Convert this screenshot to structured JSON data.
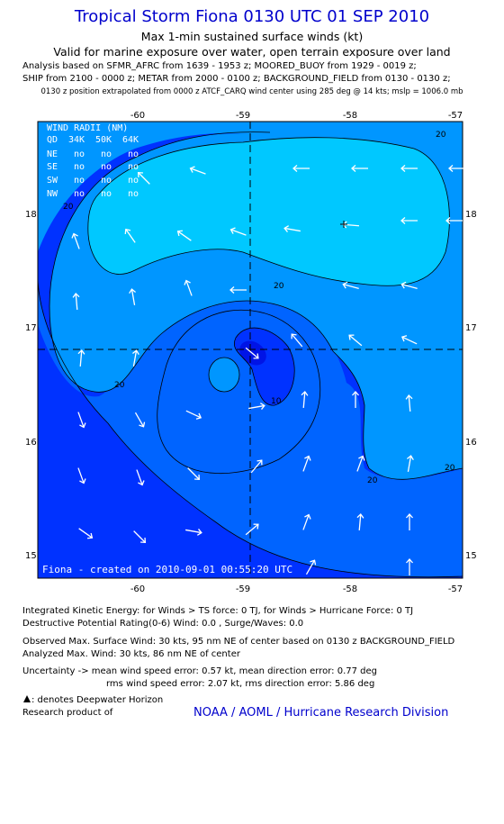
{
  "header": {
    "title": "Tropical Storm Fiona 0130 UTC 01 SEP 2010",
    "subtitle1": "Max 1-min sustained surface winds (kt)",
    "subtitle2": "Valid for marine exposure over water, open terrain exposure over land",
    "analysis1": "Analysis based on SFMR_AFRC from 1639 - 1953 z; MOORED_BUOY from 1929 - 0019 z;",
    "analysis2": "SHIP from 2100 - 0000 z; METAR from 2000 - 0100 z; BACKGROUND_FIELD from 0130 - 0130 z;",
    "position_note": "0130 z position extrapolated from 0000 z ATCF_CARQ wind center using 285 deg @ 14 kts; mslp = 1006.0 mb"
  },
  "map": {
    "lon_ticks": [
      "-60",
      "-59",
      "-58",
      "-57"
    ],
    "lat_ticks": [
      "18",
      "17",
      "16",
      "15"
    ],
    "contour_labels": [
      "20",
      "20",
      "20",
      "20",
      "20",
      "10"
    ],
    "wind_radii": {
      "title": "WIND RADII (NM)",
      "header": [
        "QD",
        "34K",
        "50K",
        "64K"
      ],
      "rows": [
        [
          "NE",
          "no",
          "no",
          "no"
        ],
        [
          "SE",
          "no",
          "no",
          "no"
        ],
        [
          "SW",
          "no",
          "no",
          "no"
        ],
        [
          "NW",
          "no",
          "no",
          "no"
        ]
      ]
    },
    "credit": "Fiona - created on 2010-09-01 00:55:20 UTC",
    "colors": {
      "light": "#00c8ff",
      "mid": "#0096ff",
      "medium_dark": "#0064ff",
      "dark": "#0032ff",
      "center_light": "#0096ff"
    }
  },
  "footer": {
    "ike": "Integrated Kinetic Energy:  for Winds > TS force: 0 TJ,  for Winds > Hurricane Force: 0 TJ",
    "dpr": "Destructive Potential Rating(0-6)   Wind: 0.0 , Surge/Waves: 0.0",
    "observed": "Observed Max. Surface Wind: 30 kts, 95 nm NE of center based on 0130 z BACKGROUND_FIELD",
    "analyzed": "Analyzed Max. Wind: 30 kts, 86 nm NE of center",
    "uncertainty1": "Uncertainty -> mean wind speed error: 0.57 kt,   mean direction error: 0.77 deg",
    "uncertainty2": "rms wind speed error: 2.07 kt,   rms direction error: 5.86 deg",
    "deepwater": ": denotes Deepwater Horizon",
    "research": "Research product of",
    "org": "NOAA / AOML / Hurricane Research Division"
  }
}
